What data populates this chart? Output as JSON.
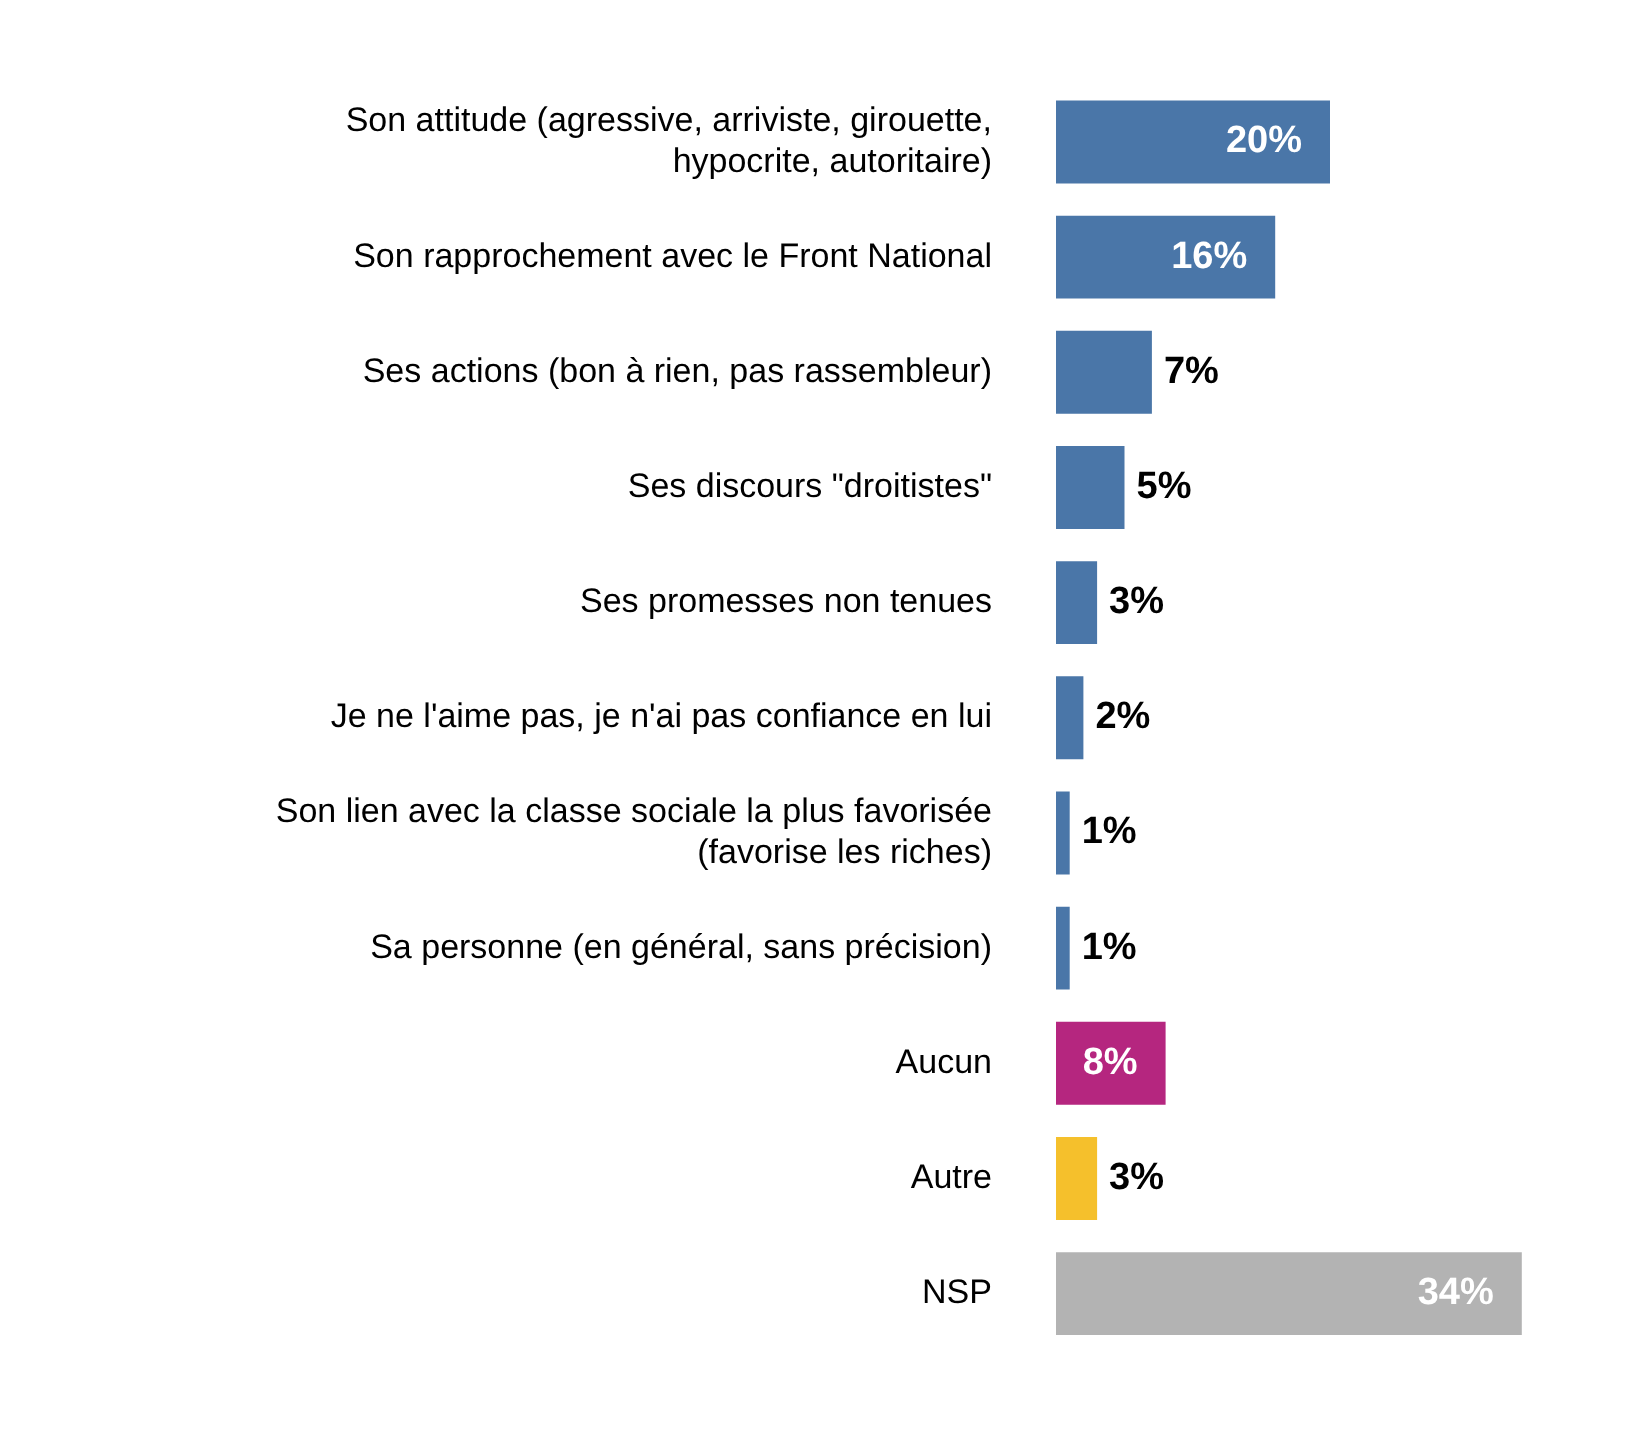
{
  "chart_data": {
    "type": "bar",
    "orientation": "horizontal",
    "categories": [
      "Son attitude (agressive, arriviste, girouette, hypocrite, autoritaire)",
      "Son rapprochement avec le Front National",
      "Ses actions (bon à rien, pas rassembleur)",
      "Ses discours \"droitistes\"",
      "Ses promesses non tenues",
      "Je ne l'aime pas, je n'ai pas confiance en lui",
      "Son lien avec la classe sociale la plus favorisée (favorise les riches)",
      "Sa personne (en général, sans précision)",
      "Aucun",
      "Autre",
      "NSP"
    ],
    "values": [
      20,
      16,
      7,
      5,
      3,
      2,
      1,
      1,
      8,
      3,
      34
    ],
    "colors": [
      "#4a76a8",
      "#4a76a8",
      "#4a76a8",
      "#4a76a8",
      "#4a76a8",
      "#4a76a8",
      "#4a76a8",
      "#4a76a8",
      "#b5267f",
      "#f5c02c",
      "#b3b3b3"
    ],
    "value_labels": [
      "20%",
      "16%",
      "7%",
      "5%",
      "3%",
      "2%",
      "1%",
      "1%",
      "8%",
      "3%",
      "34%"
    ],
    "legend": false
  }
}
